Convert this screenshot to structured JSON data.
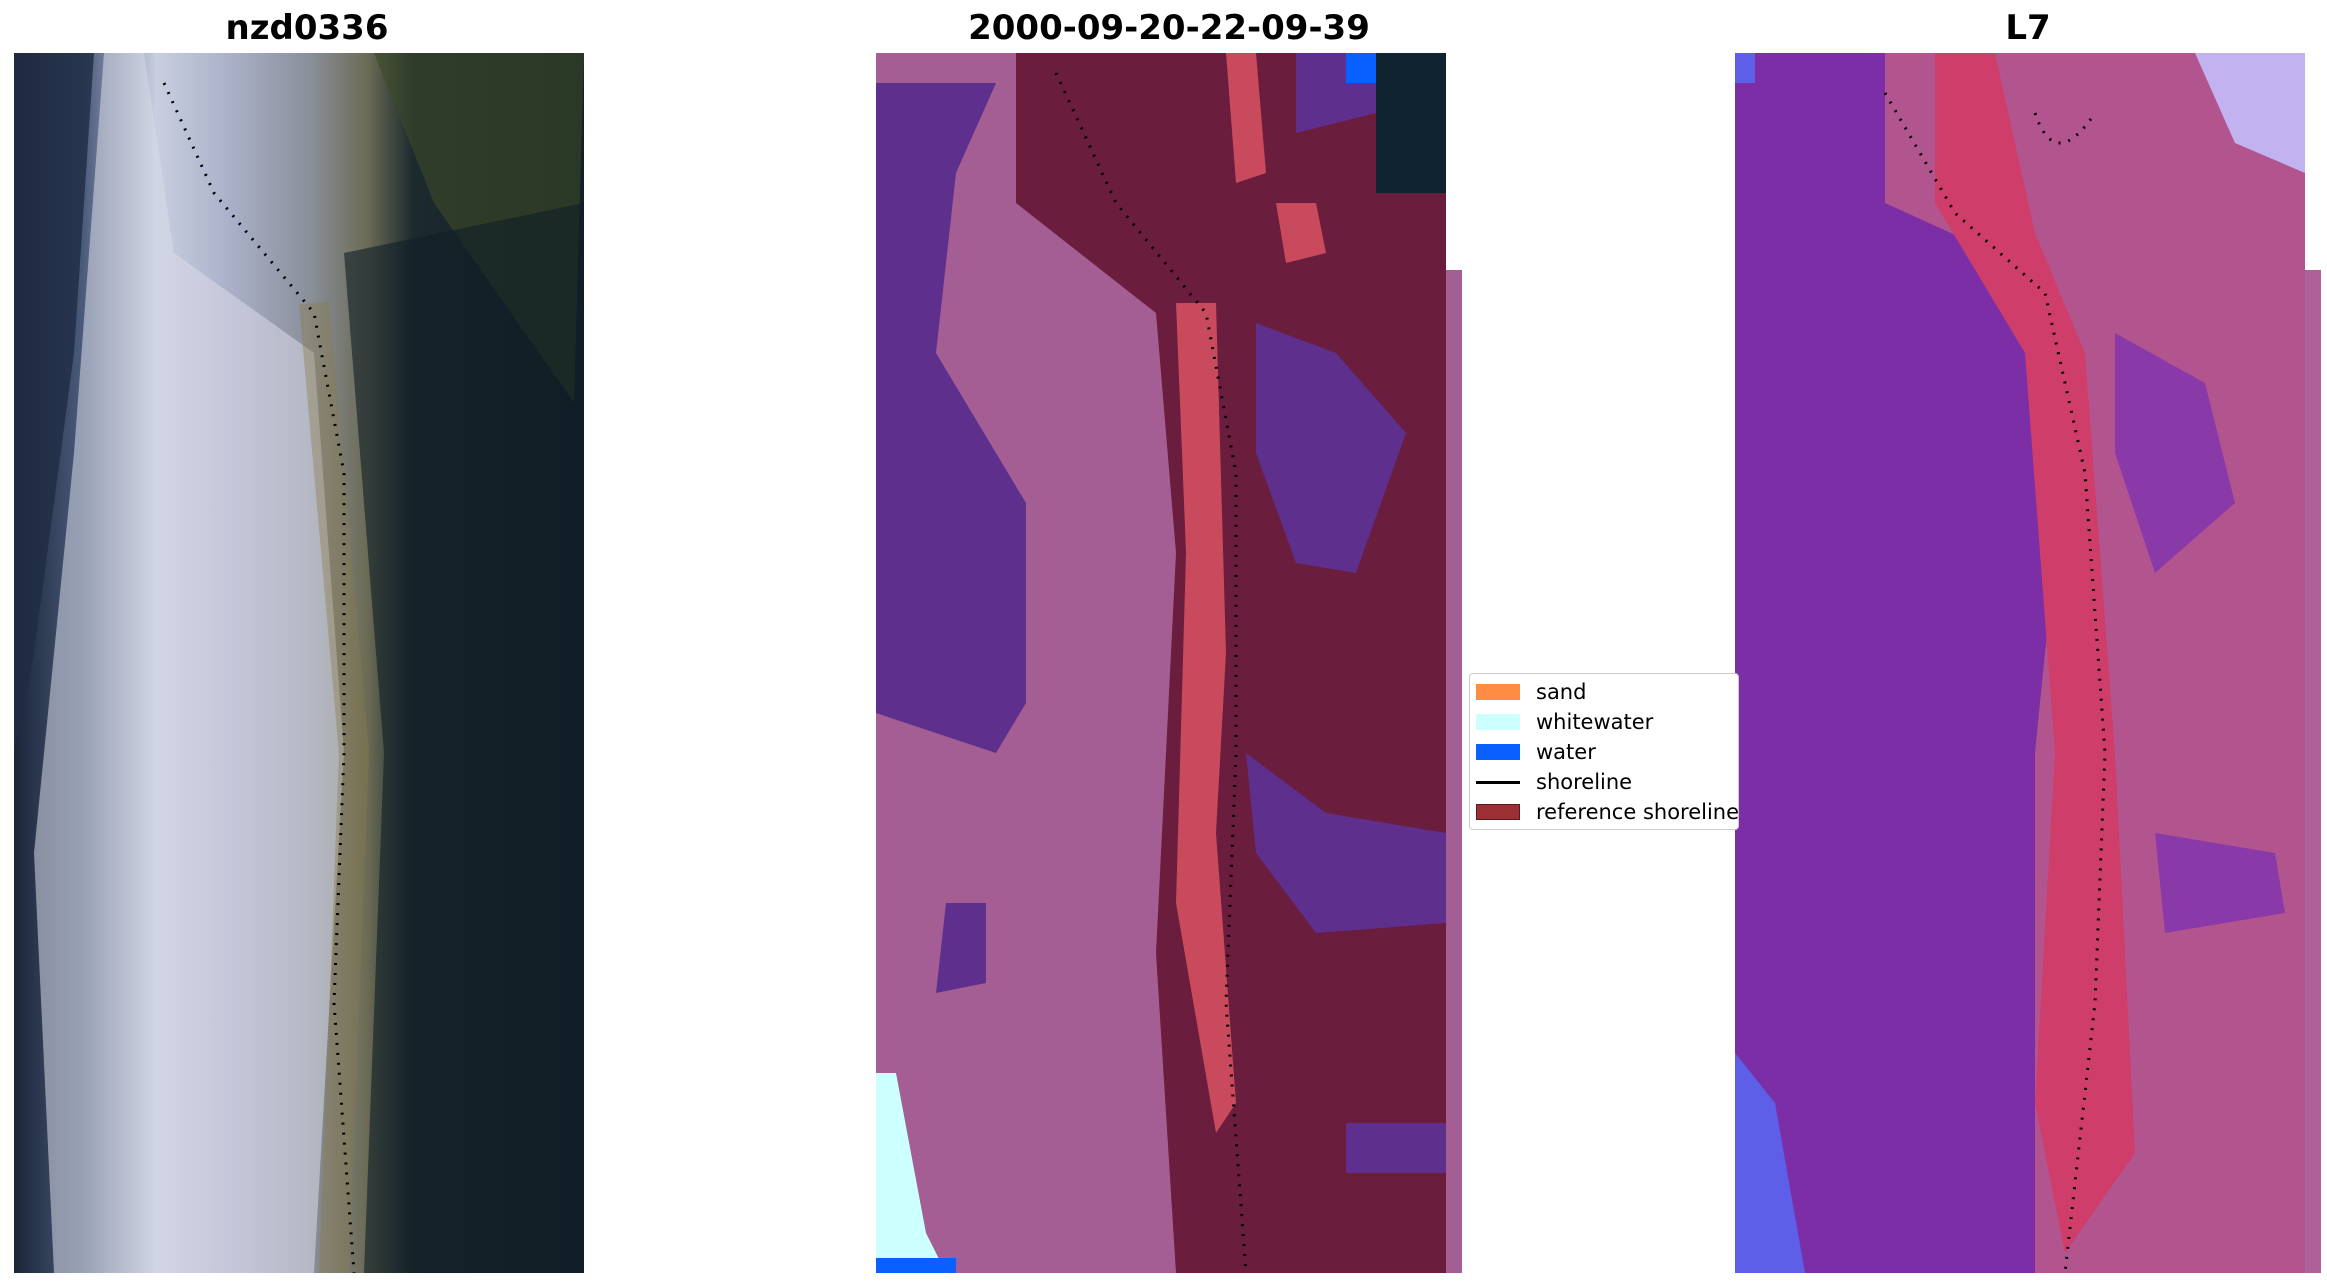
{
  "panels": [
    {
      "title": "nzd0336"
    },
    {
      "title": "2000-09-20-22-09-39"
    },
    {
      "title": "L7"
    }
  ],
  "legend": {
    "items": [
      {
        "label": "sand",
        "color": "#ff8c42",
        "kind": "patch"
      },
      {
        "label": "whitewater",
        "color": "#ccffff",
        "kind": "patch"
      },
      {
        "label": "water",
        "color": "#0a5fff",
        "kind": "patch"
      },
      {
        "label": "shoreline",
        "color": "#000000",
        "kind": "line"
      },
      {
        "label": "reference shoreline",
        "color": "#9b2f34",
        "kind": "patch"
      }
    ]
  }
}
